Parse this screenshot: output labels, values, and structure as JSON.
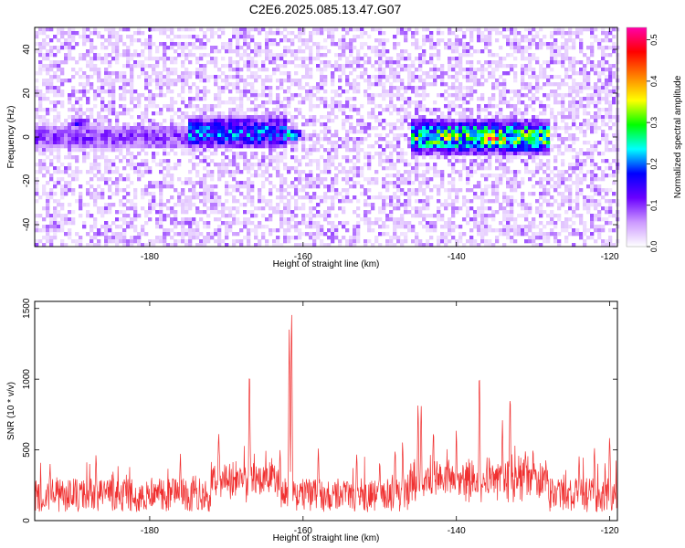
{
  "title": "C2E6.2025.085.13.47.G07",
  "chart_data": [
    {
      "type": "heatmap",
      "xlabel": "Height of straight line (km)",
      "ylabel": "Frequency (Hz)",
      "xlim": [
        -195,
        -119
      ],
      "ylim": [
        -50,
        50
      ],
      "xticks": [
        -180,
        -160,
        -140,
        -120
      ],
      "yticks": [
        -40,
        -20,
        0,
        20,
        40
      ],
      "grid": false,
      "colorbar": {
        "label": "Normalized spectral amplitude",
        "range": [
          0,
          0.53
        ],
        "ticks": [
          0.0,
          0.1,
          0.2,
          0.3,
          0.4,
          0.5
        ],
        "colors": [
          "#ffffff",
          "#cc99ff",
          "#6a00ff",
          "#0000ff",
          "#00ffff",
          "#00ff00",
          "#ffff00",
          "#ff8000",
          "#ff0000",
          "#ff00aa"
        ]
      },
      "bands": [
        {
          "x": [
            -195,
            -176
          ],
          "y_center": 0,
          "level": 0.1
        },
        {
          "x": [
            -174,
            -163
          ],
          "y_center": 2,
          "level": 0.2
        },
        {
          "x": [
            -145,
            -129
          ],
          "y_center": 0,
          "level": 0.3
        }
      ],
      "hotspots": [
        {
          "x": -135.5,
          "y": -1,
          "value": 0.52
        },
        {
          "x": -134.5,
          "y": -1,
          "value": 0.45
        },
        {
          "x": -161.5,
          "y": 1,
          "value": 0.27
        },
        {
          "x": -171,
          "y": 1,
          "value": 0.25
        },
        {
          "x": -137,
          "y": 4,
          "value": 0.22
        },
        {
          "x": -131,
          "y": 0,
          "value": 0.2
        },
        {
          "x": -189,
          "y": 6,
          "value": 0.15
        }
      ]
    },
    {
      "type": "line",
      "xlabel": "Height of straight line (km)",
      "ylabel": "SNR (10 * v/v)",
      "xlim": [
        -195,
        -119
      ],
      "ylim": [
        0,
        1550
      ],
      "xticks": [
        -180,
        -160,
        -140,
        -120
      ],
      "yticks": [
        0,
        500,
        1000,
        1500
      ],
      "color": "#f03030",
      "grid": false,
      "baseline": 180,
      "peaks": [
        {
          "x": -161.5,
          "y": 1550
        },
        {
          "x": -161.8,
          "y": 1470
        },
        {
          "x": -167,
          "y": 1170
        },
        {
          "x": -137,
          "y": 1100
        },
        {
          "x": -133,
          "y": 920
        },
        {
          "x": -145,
          "y": 860
        },
        {
          "x": -144.6,
          "y": 850
        },
        {
          "x": -171,
          "y": 690
        },
        {
          "x": -143,
          "y": 700
        },
        {
          "x": -134,
          "y": 720
        },
        {
          "x": -140,
          "y": 680
        },
        {
          "x": -120,
          "y": 640
        },
        {
          "x": -187,
          "y": 510
        },
        {
          "x": -176,
          "y": 520
        },
        {
          "x": -158,
          "y": 560
        },
        {
          "x": -147,
          "y": 600
        },
        {
          "x": -148,
          "y": 560
        },
        {
          "x": -131,
          "y": 560
        },
        {
          "x": -130,
          "y": 530
        },
        {
          "x": -122,
          "y": 520
        },
        {
          "x": -153,
          "y": 500
        },
        {
          "x": -163,
          "y": 560
        },
        {
          "x": -193,
          "y": 420
        },
        {
          "x": -150,
          "y": 480
        },
        {
          "x": -124,
          "y": 480
        }
      ]
    }
  ]
}
